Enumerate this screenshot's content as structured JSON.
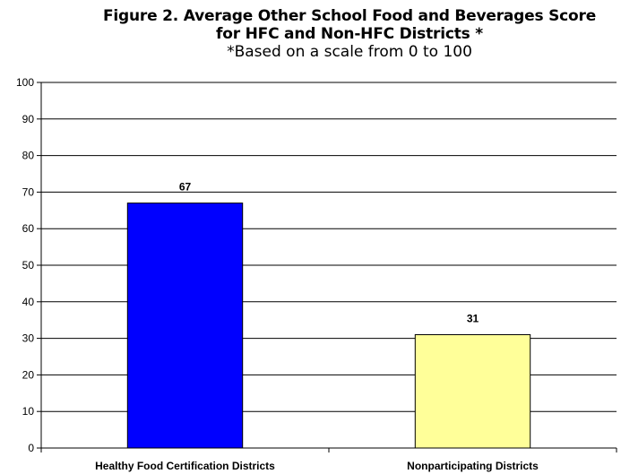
{
  "chart_data": {
    "type": "bar",
    "title": "Figure 2. Average Other School Food and Beverages Score",
    "title_line2": "for HFC and Non-HFC Districts *",
    "subtitle": "*Based on a scale from 0 to 100",
    "categories": [
      "Healthy Food Certification Districts",
      "Nonparticipating Districts"
    ],
    "values": [
      67,
      31
    ],
    "data_labels": [
      "67",
      "31"
    ],
    "bar_colors": [
      "#0000ff",
      "#ffff99"
    ],
    "xlabel": "",
    "ylabel": "",
    "ylim": [
      0,
      100
    ],
    "yticks": [
      0,
      10,
      20,
      30,
      40,
      50,
      60,
      70,
      80,
      90,
      100
    ],
    "grid": true,
    "legend": "none"
  }
}
